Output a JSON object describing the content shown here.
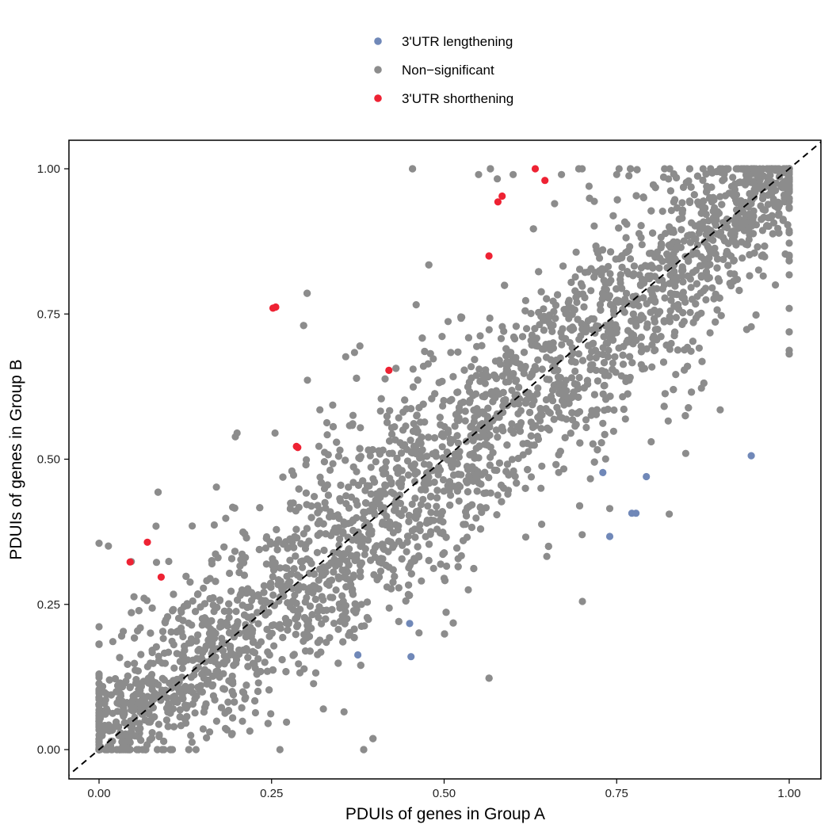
{
  "chart_data": {
    "type": "scatter",
    "xlabel": "PDUIs of genes in Group A",
    "ylabel": "PDUIs of genes in Group B",
    "xlim": [
      -0.05,
      1.03
    ],
    "ylim": [
      -0.05,
      1.05
    ],
    "x_ticks": [
      "0.00",
      "0.25",
      "0.50",
      "0.75",
      "1.00"
    ],
    "y_ticks": [
      "0.00",
      "0.25",
      "0.50",
      "0.75",
      "1.00"
    ],
    "x_tick_values": [
      0,
      0.25,
      0.5,
      0.75,
      1.0
    ],
    "y_tick_values": [
      0,
      0.25,
      0.5,
      0.75,
      1.0
    ],
    "grid": false,
    "reference_line": {
      "type": "dashed",
      "slope": 1,
      "intercept": 0,
      "color": "#000000"
    },
    "legend": {
      "position": "top",
      "entries": [
        {
          "label": "3'UTR lengthening",
          "color": "#7088b8"
        },
        {
          "label": "Non−significant",
          "color": "#8c8c8c"
        },
        {
          "label": "3'UTR shorthening",
          "color": "#ee2233"
        }
      ]
    },
    "series": [
      {
        "name": "3'UTR lengthening",
        "color": "#7088b8",
        "points": [
          [
            0.945,
            0.506
          ],
          [
            0.73,
            0.477
          ],
          [
            0.793,
            0.47
          ],
          [
            0.772,
            0.407
          ],
          [
            0.778,
            0.407
          ],
          [
            0.74,
            0.367
          ],
          [
            0.45,
            0.217
          ],
          [
            0.375,
            0.163
          ],
          [
            0.452,
            0.16
          ]
        ]
      },
      {
        "name": "3'UTR shorthening",
        "color": "#ee2233",
        "points": [
          [
            0.632,
            1.0
          ],
          [
            0.646,
            0.98
          ],
          [
            0.584,
            0.953
          ],
          [
            0.578,
            0.943
          ],
          [
            0.565,
            0.85
          ],
          [
            0.252,
            0.76
          ],
          [
            0.256,
            0.762
          ],
          [
            0.42,
            0.653
          ],
          [
            0.286,
            0.522
          ],
          [
            0.288,
            0.52
          ],
          [
            0.07,
            0.357
          ],
          [
            0.045,
            0.323
          ],
          [
            0.09,
            0.297
          ]
        ]
      },
      {
        "name": "Non−significant",
        "color": "#8c8c8c",
        "generated": {
          "count": 4200,
          "around": "y = x",
          "spread": 0.085,
          "range": [
            0,
            1
          ]
        },
        "outliers": [
          [
            0.55,
            0.99
          ],
          [
            0.6,
            0.99
          ],
          [
            0.67,
            0.99
          ],
          [
            0.7,
            1.0
          ],
          [
            0.75,
            0.99
          ],
          [
            0.66,
            0.94
          ],
          [
            0.71,
            0.97
          ],
          [
            0.378,
            0.695
          ],
          [
            0.455,
            0.655
          ],
          [
            0.47,
            0.66
          ],
          [
            0.302,
            0.636
          ],
          [
            0.32,
            0.585
          ],
          [
            0.2,
            0.545
          ],
          [
            0.255,
            0.545
          ],
          [
            0.17,
            0.452
          ],
          [
            0.135,
            0.385
          ],
          [
            0.945,
            0.728
          ],
          [
            0.9,
            0.585
          ],
          [
            0.8,
            0.53
          ],
          [
            0.85,
            0.51
          ],
          [
            0.74,
            0.415
          ],
          [
            0.7,
            0.37
          ],
          [
            0.355,
            0.065
          ],
          [
            0.325,
            0.07
          ],
          [
            0.5,
            0.295
          ],
          [
            0.535,
            0.275
          ],
          [
            0.16,
            0.2
          ],
          [
            0.02,
            0.186
          ],
          [
            0.88,
            0.96
          ],
          [
            0.96,
            0.85
          ],
          [
            0.98,
            0.8
          ]
        ]
      }
    ]
  }
}
